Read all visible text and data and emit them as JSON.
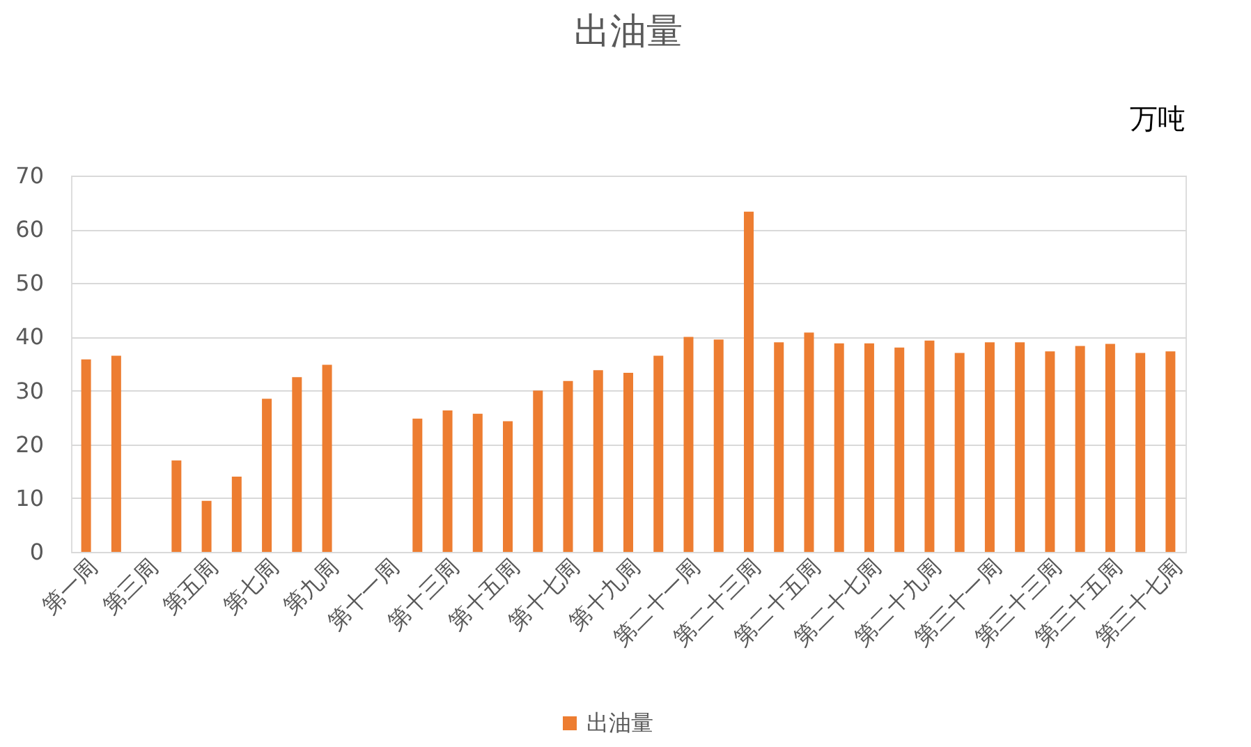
{
  "chart_data": {
    "type": "bar",
    "title": "出油量",
    "annotations": [
      "万吨"
    ],
    "categories": [
      "第一周",
      null,
      "第三周",
      null,
      "第五周",
      null,
      "第七周",
      null,
      "第九周",
      null,
      "第十一周",
      null,
      "第十三周",
      null,
      "第十五周",
      null,
      "第十七周",
      null,
      "第十九周",
      null,
      "第二十一周",
      null,
      "第二十三周",
      null,
      "第二十五周",
      null,
      "第二十七周",
      null,
      "第二十九周",
      null,
      "第三十一周",
      null,
      "第三十三周",
      null,
      "第三十五周",
      null,
      "第三十七周"
    ],
    "series": [
      {
        "name": "出油量",
        "color": "#ed7d31",
        "values": [
          35.8,
          36.5,
          null,
          17,
          9.5,
          14,
          28.5,
          32.5,
          34.8,
          null,
          null,
          24.8,
          26.3,
          25.7,
          24.3,
          30,
          31.8,
          33.8,
          33.3,
          36.5,
          40,
          39.5,
          63.3,
          39,
          40.8,
          38.8,
          38.8,
          38,
          39.3,
          37,
          39,
          39,
          37.3,
          38.3,
          38.7,
          37,
          37.3
        ]
      }
    ],
    "ylim": [
      0,
      70
    ],
    "yticks": [
      0,
      10,
      20,
      30,
      40,
      50,
      60,
      70
    ],
    "grid": "y",
    "legend": "bottom"
  }
}
